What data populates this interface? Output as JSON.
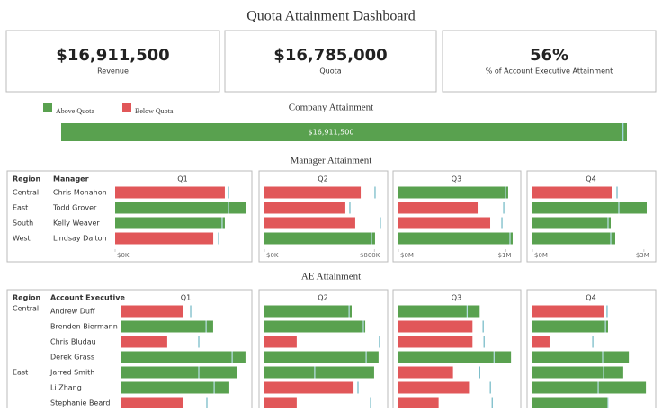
{
  "title": "Quota Attainment Dashboard",
  "kpis": [
    {
      "value": "$16,911,500",
      "label": "Revenue"
    },
    {
      "value": "$16,785,000",
      "label": "Quota"
    },
    {
      "value": "56%",
      "label": "% of Account Executive Attainment"
    }
  ],
  "legend": [
    {
      "name": "Above Quota",
      "color": "#59a14f"
    },
    {
      "name": "Below Quota",
      "color": "#e15759"
    }
  ],
  "company": {
    "title": "Company Attainment",
    "value": 16911500,
    "value_label": "$16,911,500",
    "quota": 16785000,
    "xlim": [
      0,
      16992000
    ]
  },
  "managers": {
    "title": "Manager Attainment",
    "region_header": "Region",
    "name_header": "Manager",
    "rows": [
      {
        "region": "Central",
        "name": "Chris Monahon"
      },
      {
        "region": "East",
        "name": "Todd Grover"
      },
      {
        "region": "South",
        "name": "Kelly Weaver"
      },
      {
        "region": "West",
        "name": "Lindsay Dalton"
      }
    ],
    "quarters": [
      {
        "name": "Q1",
        "xlim": [
          0,
          1000000
        ],
        "xticks": [
          {
            "value": 0,
            "label": "$0K"
          }
        ],
        "values": [
          813000,
          967000,
          813000,
          727000
        ],
        "quota": [
          840000,
          840000,
          793000,
          767000
        ]
      },
      {
        "name": "Q2",
        "xlim": [
          0,
          850000
        ],
        "xticks": [
          {
            "value": 0,
            "label": "$0K"
          },
          {
            "value": 800000,
            "label": "$800K"
          }
        ],
        "values": [
          700000,
          588000,
          660000,
          804000
        ],
        "quota": [
          804000,
          621000,
          843000,
          778000
        ]
      },
      {
        "name": "Q3",
        "xlim": [
          0,
          1080000
        ],
        "xticks": [
          {
            "value": 0,
            "label": "$0M"
          },
          {
            "value": 1000000,
            "label": "$1M"
          }
        ],
        "values": [
          1021000,
          737000,
          854000,
          1063000
        ],
        "quota": [
          996000,
          980000,
          963000,
          1038000
        ]
      },
      {
        "name": "Q4",
        "xlim": [
          0,
          3150000
        ],
        "xticks": [
          {
            "value": 0,
            "label": "$0M"
          },
          {
            "value": 3000000,
            "label": "$3M"
          }
        ],
        "values": [
          2132000,
          3077000,
          2108000,
          2229000
        ],
        "quota": [
          2278000,
          2326000,
          2035000,
          2108000
        ]
      }
    ]
  },
  "aes": {
    "title": "AE Attainment",
    "region_header": "Region",
    "name_header": "Account Executive",
    "rows": [
      {
        "region": "Central",
        "name": "Andrew Duff"
      },
      {
        "region": null,
        "name": "Brenden Biermann"
      },
      {
        "region": null,
        "name": "Chris Bludau"
      },
      {
        "region": null,
        "name": "Derek Grass"
      },
      {
        "region": "East",
        "name": "Jarred Smith"
      },
      {
        "region": null,
        "name": "Li Zhang"
      },
      {
        "region": null,
        "name": "Stephanie Beard"
      }
    ],
    "quarters": [
      {
        "name": "Q1",
        "xlim": [
          0,
          500000
        ],
        "values": [
          238000,
          355000,
          179000,
          479000,
          448000,
          417000,
          238000
        ],
        "quota": [
          269000,
          328000,
          300000,
          428000,
          300000,
          359000,
          331000
        ]
      },
      {
        "name": "Q2",
        "xlim": [
          0,
          500000
        ],
        "values": [
          373000,
          431000,
          138000,
          488000,
          469000,
          381000,
          138000
        ],
        "quota": [
          362000,
          423000,
          492000,
          435000,
          215000,
          400000,
          454000
        ]
      },
      {
        "name": "Q3",
        "xlim": [
          0,
          500000
        ],
        "values": [
          350000,
          319000,
          319000,
          485000,
          235000,
          304000,
          173000
        ],
        "quota": [
          296000,
          365000,
          369000,
          412000,
          350000,
          396000,
          404000
        ]
      },
      {
        "name": "Q4",
        "xlim": [
          0,
          500000
        ],
        "values": [
          304000,
          323000,
          73000,
          412000,
          388000,
          485000,
          325000
        ],
        "quota": [
          319000,
          312000,
          258000,
          300000,
          304000,
          281000,
          323000
        ]
      }
    ]
  }
}
